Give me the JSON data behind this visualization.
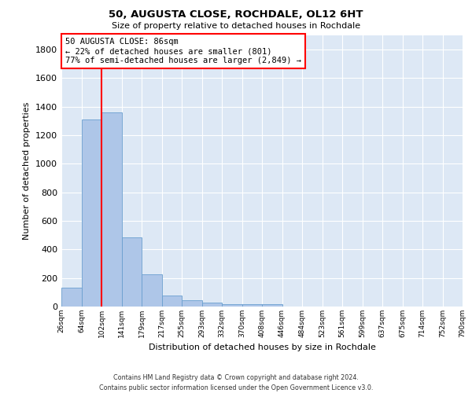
{
  "title": "50, AUGUSTA CLOSE, ROCHDALE, OL12 6HT",
  "subtitle": "Size of property relative to detached houses in Rochdale",
  "xlabel": "Distribution of detached houses by size in Rochdale",
  "ylabel": "Number of detached properties",
  "bar_values": [
    130,
    1310,
    1360,
    485,
    225,
    75,
    45,
    28,
    15,
    15,
    15,
    0,
    0,
    0,
    0,
    0,
    0,
    0,
    0,
    0
  ],
  "bin_labels": [
    "26sqm",
    "64sqm",
    "102sqm",
    "141sqm",
    "179sqm",
    "217sqm",
    "255sqm",
    "293sqm",
    "332sqm",
    "370sqm",
    "408sqm",
    "446sqm",
    "484sqm",
    "523sqm",
    "561sqm",
    "599sqm",
    "637sqm",
    "675sqm",
    "714sqm",
    "752sqm",
    "790sqm"
  ],
  "bar_color": "#aec6e8",
  "bar_edge_color": "#6a9fcf",
  "annotation_text_line1": "50 AUGUSTA CLOSE: 86sqm",
  "annotation_text_line2": "← 22% of detached houses are smaller (801)",
  "annotation_text_line3": "77% of semi-detached houses are larger (2,849) →",
  "vline_x_index": 1.5,
  "ylim": [
    0,
    1900
  ],
  "yticks": [
    0,
    200,
    400,
    600,
    800,
    1000,
    1200,
    1400,
    1600,
    1800
  ],
  "bg_color": "#dde8f5",
  "grid_color": "#ffffff",
  "footer_line1": "Contains HM Land Registry data © Crown copyright and database right 2024.",
  "footer_line2": "Contains public sector information licensed under the Open Government Licence v3.0."
}
